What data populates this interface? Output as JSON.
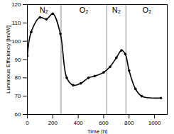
{
  "chart_data": {
    "type": "line",
    "x_label": "Time [h]",
    "y_label": "Luminous Efficiency [lm/W]",
    "x": [
      0,
      30,
      100,
      150,
      200,
      260,
      310,
      360,
      420,
      480,
      530,
      600,
      650,
      700,
      740,
      770,
      800,
      850,
      900,
      1050
    ],
    "series": [
      {
        "name": "Luminous Efficiency",
        "color": "#000000",
        "marker": "circle",
        "line_style": "solid",
        "values": [
          92,
          105,
          113,
          112,
          115,
          104,
          80,
          76,
          77,
          80,
          81,
          83,
          86,
          91,
          95,
          93,
          84,
          74,
          70,
          69
        ]
      }
    ],
    "xlim": [
      0,
      1100
    ],
    "xticks": [
      0,
      200,
      400,
      600,
      800,
      1000
    ],
    "ylim": [
      60,
      120
    ],
    "yticks": [
      60,
      70,
      80,
      90,
      100,
      110,
      120
    ],
    "phase_boundaries": [
      265,
      625,
      775
    ],
    "annotations": [
      {
        "text": "N₂",
        "x": 130,
        "y": 117
      },
      {
        "text": "O₂",
        "x": 445,
        "y": 117
      },
      {
        "text": "N₂",
        "x": 700,
        "y": 117
      },
      {
        "text": "O₂",
        "x": 940,
        "y": 117
      }
    ],
    "grid": false
  }
}
